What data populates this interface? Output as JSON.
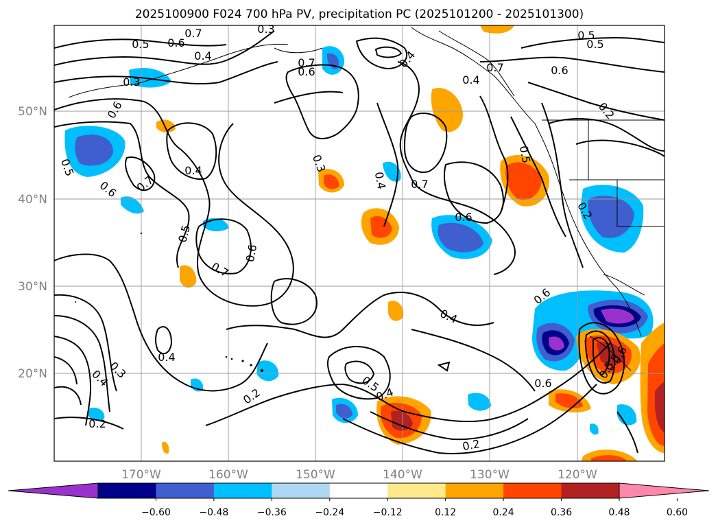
{
  "title": "2025100900 F024 700 hPa PV, precipitation PC (2025101200 - 2025101300)",
  "map": {
    "lon_ticks": [
      "170°W",
      "160°W",
      "150°W",
      "140°W",
      "130°W",
      "120°W"
    ],
    "lat_ticks": [
      "50°N",
      "40°N",
      "30°N",
      "20°N"
    ],
    "grid": true,
    "contour_labels": [
      "0.7",
      "0.3",
      "0.5",
      "0.6",
      "0.4",
      "0.3",
      "0.6",
      "0.5",
      "0.7",
      "0.6",
      "0.4",
      "0.7",
      "0.6",
      "0.5",
      "0.5",
      "0.7",
      "0.4",
      "0.5",
      "0.6",
      "0.7",
      "0.3",
      "0.4",
      "0.7",
      "0.6",
      "0.5",
      "0.2",
      "0.6",
      "0.4",
      "0.2",
      "0.4",
      "0.3",
      "0.4",
      "0.2",
      "0.2",
      "0.5",
      "0.4",
      "0.4",
      "0.2",
      "0.6",
      "0.6",
      "0.6",
      "0.5",
      "0.3"
    ]
  },
  "colorbar": {
    "tick_labels": [
      "−0.60",
      "−0.48",
      "−0.36",
      "−0.24",
      "−0.12",
      "0.12",
      "0.24",
      "0.36",
      "0.48",
      "0.60"
    ],
    "colors": [
      "#9932cc",
      "#00008b",
      "#3f5fcf",
      "#00bfff",
      "#add8f4",
      "#ffffff",
      "#ffe98a",
      "#ffa500",
      "#ff4500",
      "#b22222",
      "#ff88aa"
    ],
    "extend": "both"
  }
}
